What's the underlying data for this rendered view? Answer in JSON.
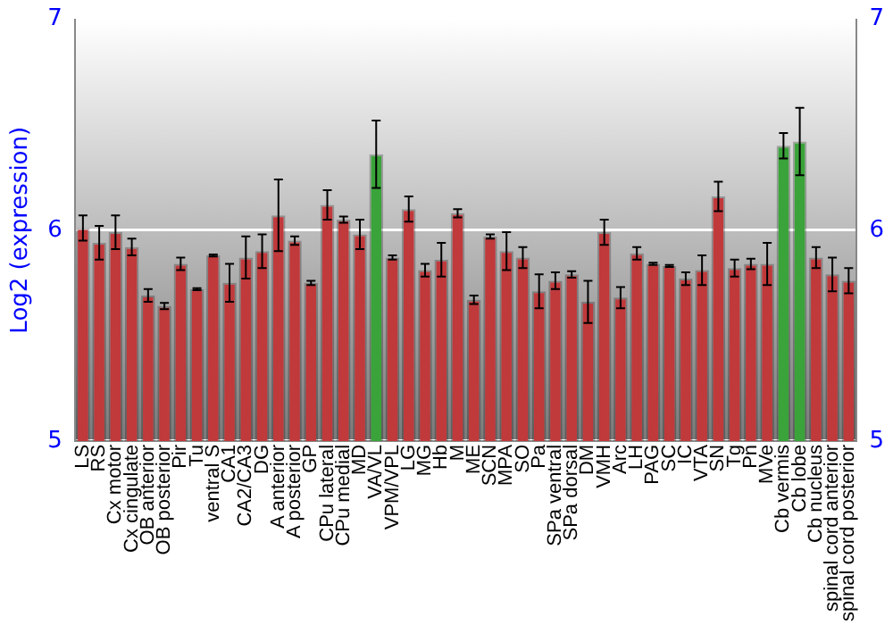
{
  "chart_data": {
    "type": "bar",
    "ylabel": "Log2 (expression)",
    "categories": [
      "LS",
      "RS",
      "Cx motor",
      "Cx cingulate",
      "OB anterior",
      "OB posterior",
      "Pir",
      "Tu",
      "ventral S",
      "CA1",
      "CA2/CA3",
      "DG",
      "A anterior",
      "A posterior",
      "GP",
      "CPu lateral",
      "CPu medial",
      "MD",
      "VA/VL",
      "VPM/VPL",
      "LG",
      "MG",
      "Hb",
      "M",
      "ME",
      "SCN",
      "MPA",
      "SO",
      "Pa",
      "SPa ventral",
      "SPa dorsal",
      "DM",
      "VMH",
      "Arc",
      "LH",
      "PAG",
      "SC",
      "IC",
      "VTA",
      "SN",
      "Tg",
      "Pn",
      "MVe",
      "Cb vermis",
      "Cb lobe",
      "Cb nucleus",
      "spinal cord anterior",
      "spinal cord posterior"
    ],
    "values": [
      6.01,
      5.94,
      5.99,
      5.92,
      5.69,
      5.64,
      5.84,
      5.72,
      5.88,
      5.75,
      5.87,
      5.9,
      6.07,
      5.95,
      5.75,
      6.12,
      6.05,
      5.98,
      6.36,
      5.87,
      6.1,
      5.81,
      5.86,
      6.08,
      5.67,
      5.97,
      5.9,
      5.87,
      5.71,
      5.76,
      5.79,
      5.66,
      5.99,
      5.68,
      5.89,
      5.84,
      5.83,
      5.77,
      5.81,
      6.16,
      5.82,
      5.84,
      5.84,
      6.4,
      6.42,
      5.87,
      5.79,
      5.76
    ],
    "errors": [
      0.06,
      0.08,
      0.08,
      0.04,
      0.03,
      0.015,
      0.03,
      0.005,
      0.005,
      0.09,
      0.1,
      0.08,
      0.17,
      0.02,
      0.01,
      0.07,
      0.015,
      0.07,
      0.16,
      0.01,
      0.06,
      0.03,
      0.08,
      0.02,
      0.02,
      0.01,
      0.09,
      0.05,
      0.08,
      0.04,
      0.015,
      0.1,
      0.06,
      0.05,
      0.03,
      0.005,
      0.005,
      0.03,
      0.07,
      0.07,
      0.04,
      0.025,
      0.1,
      0.06,
      0.16,
      0.05,
      0.08,
      0.06
    ],
    "colors": [
      "#c0393b",
      "#c0393b",
      "#c0393b",
      "#c0393b",
      "#c0393b",
      "#c0393b",
      "#c0393b",
      "#c0393b",
      "#c0393b",
      "#c0393b",
      "#c0393b",
      "#c0393b",
      "#c0393b",
      "#c0393b",
      "#c0393b",
      "#c0393b",
      "#c0393b",
      "#c0393b",
      "#3aa33a",
      "#c0393b",
      "#c0393b",
      "#c0393b",
      "#c0393b",
      "#c0393b",
      "#c0393b",
      "#c0393b",
      "#c0393b",
      "#c0393b",
      "#c0393b",
      "#c0393b",
      "#c0393b",
      "#c0393b",
      "#c0393b",
      "#c0393b",
      "#c0393b",
      "#c0393b",
      "#c0393b",
      "#c0393b",
      "#c0393b",
      "#c0393b",
      "#c0393b",
      "#c0393b",
      "#c0393b",
      "#3aa33a",
      "#3aa33a",
      "#c0393b",
      "#c0393b",
      "#c0393b"
    ],
    "ylim": [
      5,
      7
    ],
    "yticks": [
      5,
      6,
      7
    ],
    "y2lim": [
      5,
      7
    ],
    "y2ticks": [
      5,
      6,
      7
    ],
    "grid": "y",
    "legend": false
  }
}
